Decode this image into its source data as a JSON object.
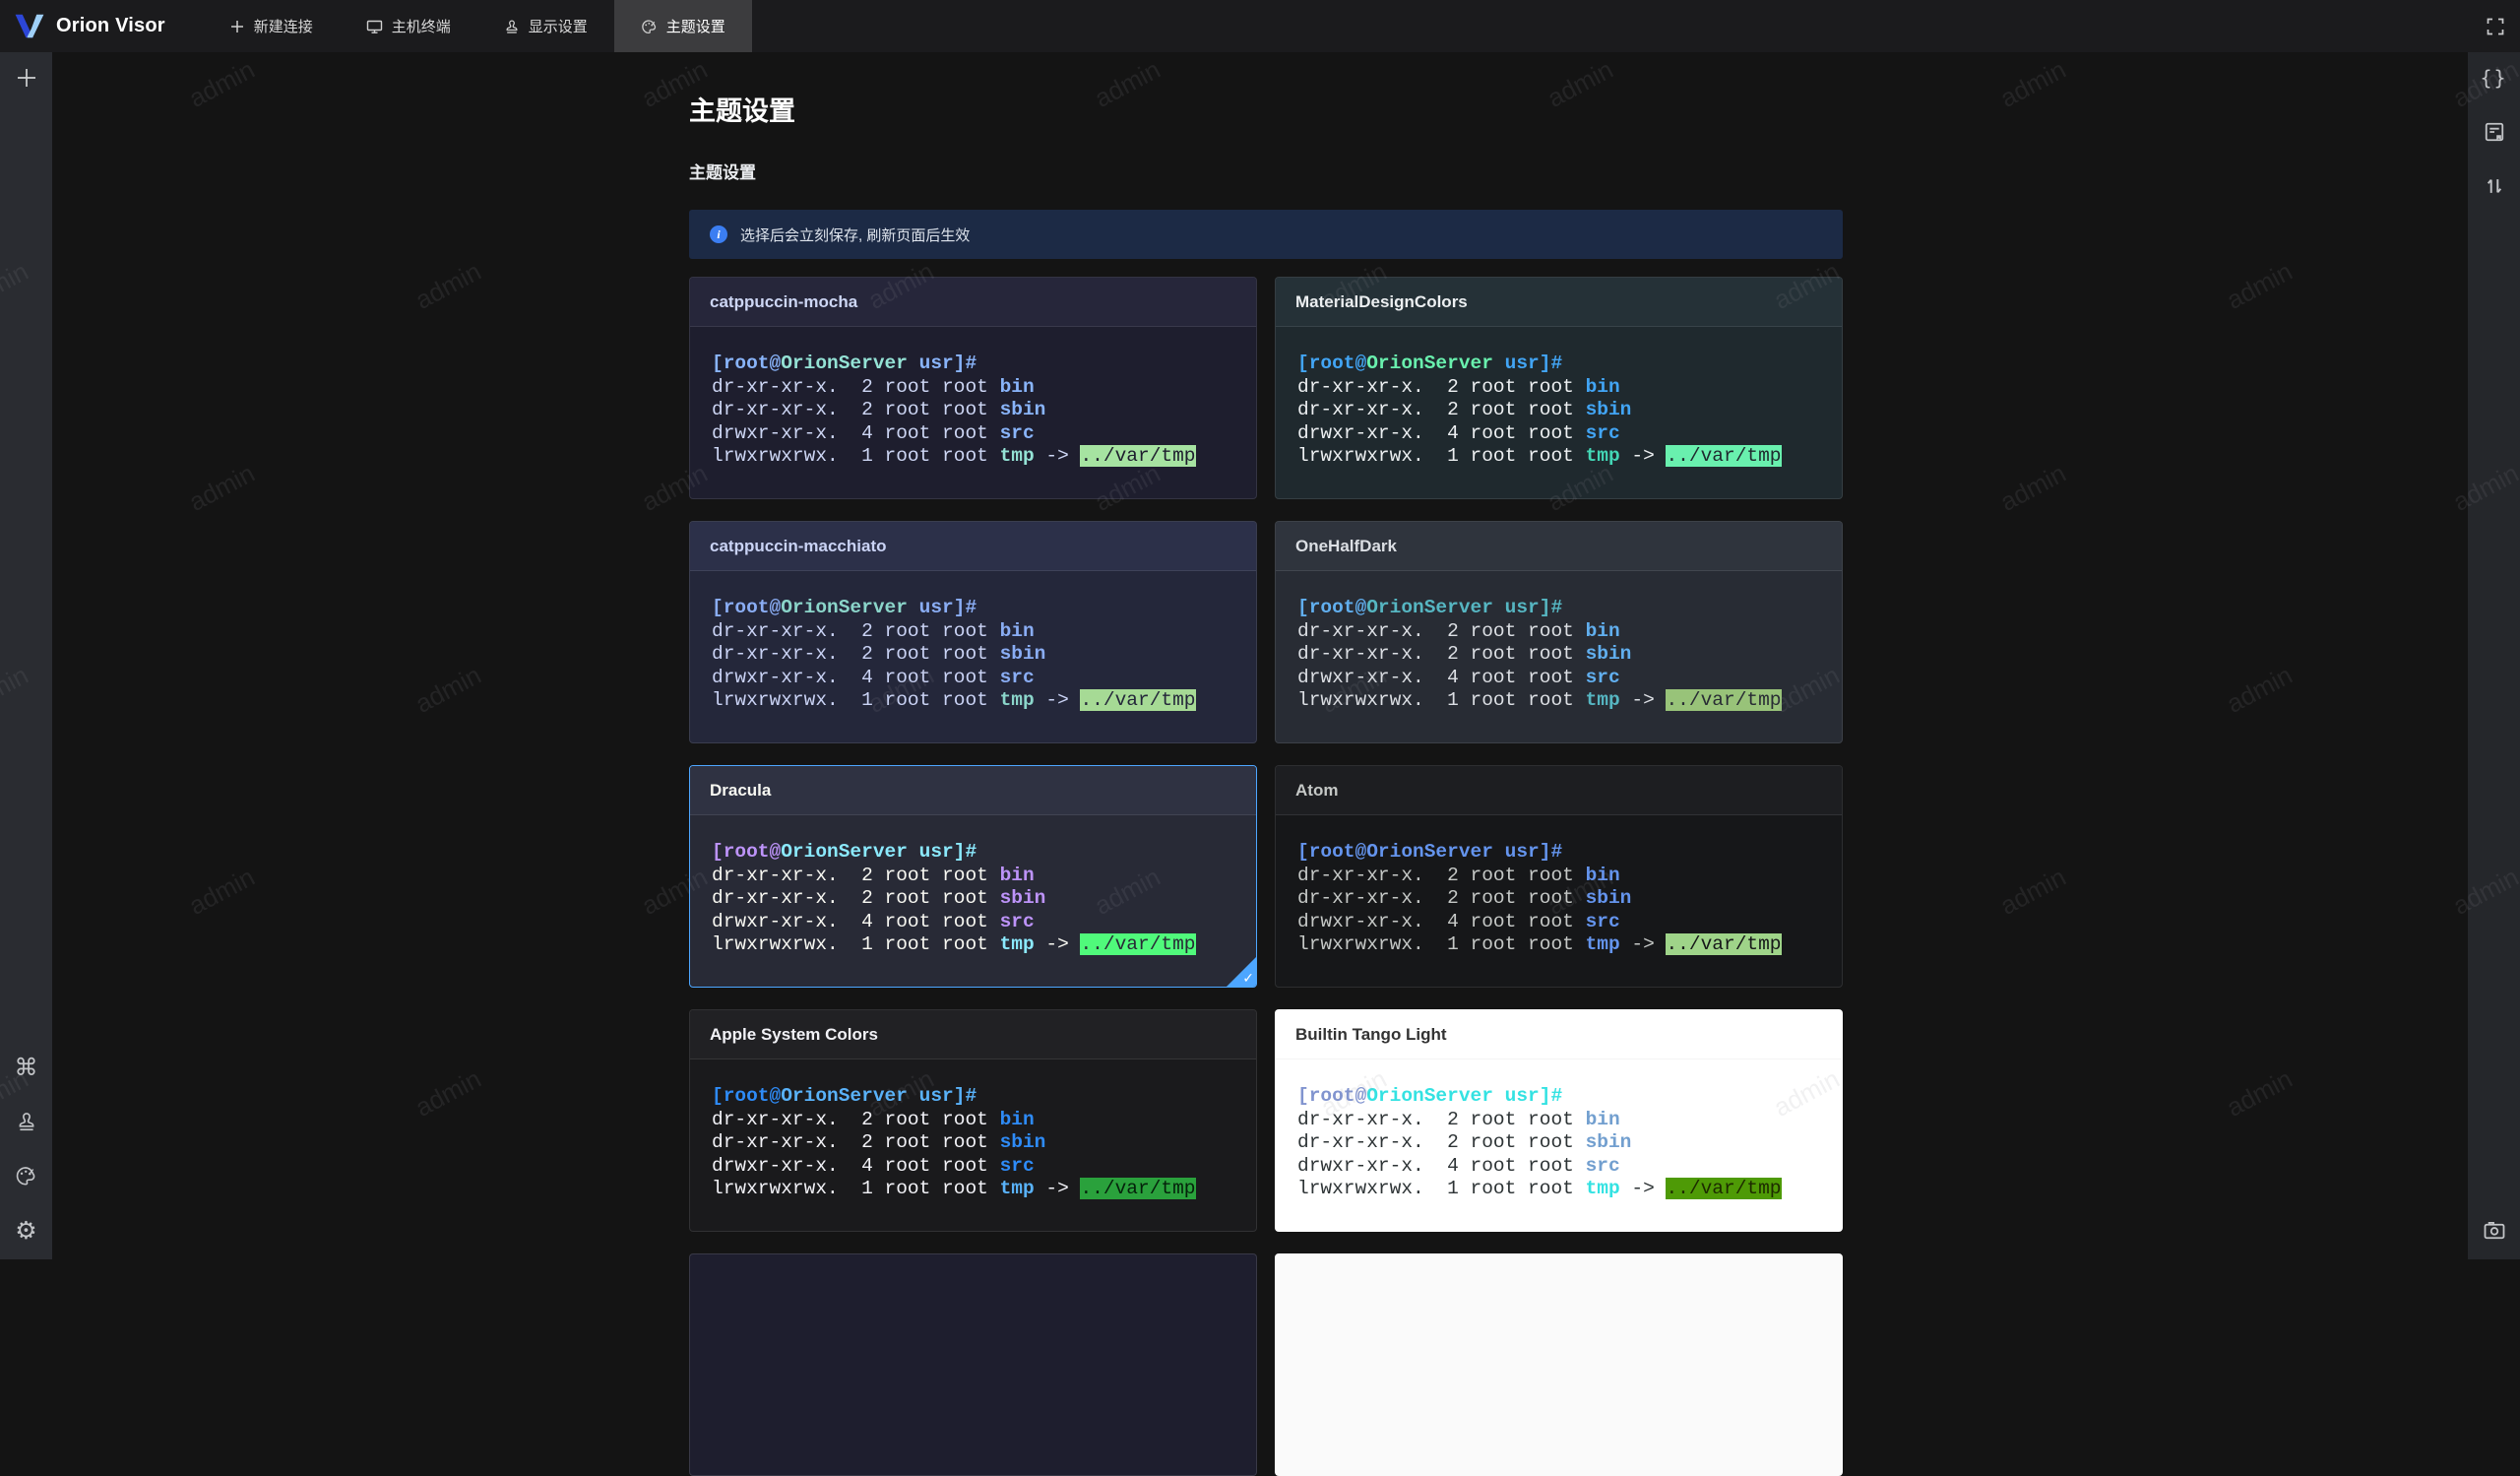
{
  "app": {
    "name": "Orion Visor"
  },
  "topbar": {
    "tabs": [
      {
        "label": "新建连接",
        "icon": "plus-icon",
        "active": false
      },
      {
        "label": "主机终端",
        "icon": "monitor-icon",
        "active": false
      },
      {
        "label": "显示设置",
        "icon": "stamp-icon",
        "active": false
      },
      {
        "label": "主题设置",
        "icon": "palette-icon",
        "active": true
      }
    ],
    "fullscreen_icon": "fullscreen-icon"
  },
  "left_rail": {
    "top_icons": [
      "plus-icon"
    ],
    "bottom_icons": [
      "command-icon",
      "stamp-icon",
      "palette-icon",
      "gear-icon"
    ]
  },
  "right_rail": {
    "top_icons": [
      "braces-icon",
      "doc-bookmark-icon",
      "sort-arrows-icon"
    ],
    "bottom_icons": [
      "camera-icon"
    ]
  },
  "page": {
    "title": "主题设置",
    "section_title": "主题设置",
    "notice": "选择后会立刻保存, 刷新页面后生效"
  },
  "watermark": {
    "text": "admin"
  },
  "selection": {
    "accent": "#4da6ff",
    "check_glyph": "✓"
  },
  "terminal_preview": {
    "prompt": {
      "bracket": "[root@",
      "host": "OrionServer",
      "rest": " usr]#"
    },
    "lines": [
      {
        "pre": "dr-xr-xr-x.  2 root root ",
        "name": "bin"
      },
      {
        "pre": "dr-xr-xr-x.  2 root root ",
        "name": "sbin"
      },
      {
        "pre": "drwxr-xr-x.  4 root root ",
        "name": "src"
      },
      {
        "pre": "lrwxrwxrwx.  1 root root ",
        "name": "tmp",
        "arrow": " -> ",
        "link": "../var/tmp"
      }
    ]
  },
  "themes": [
    {
      "name": "catppuccin-mocha",
      "selected": false,
      "colors": {
        "bg": "#1e1e2e",
        "header": "#26263a",
        "divider": "rgba(255,255,255,0.09)",
        "title": "#cdd6f4",
        "text": "#cdd6f4",
        "bracket": "#89b4fa",
        "host": "#94e2d5",
        "user": "#89b4fa",
        "dir": "#89b4fa",
        "tmp": "#94e2d5",
        "hl_bg": "#a6e3a1",
        "hl_text": "#1e1e2e"
      }
    },
    {
      "name": "MaterialDesignColors",
      "selected": false,
      "colors": {
        "bg": "#1f292e",
        "header": "#253137",
        "divider": "rgba(255,255,255,0.09)",
        "title": "#eceff1",
        "text": "#eceff1",
        "bracket": "#42a5f5",
        "host": "#69f0ae",
        "user": "#42a5f5",
        "dir": "#42a5f5",
        "tmp": "#43d6b5",
        "hl_bg": "#69f0ae",
        "hl_text": "#1f292e"
      }
    },
    {
      "name": "catppuccin-macchiato",
      "selected": false,
      "colors": {
        "bg": "#24273a",
        "header": "#2c3049",
        "divider": "rgba(255,255,255,0.09)",
        "title": "#cad3f5",
        "text": "#cad3f5",
        "bracket": "#8aadf4",
        "host": "#8bd5ca",
        "user": "#8aadf4",
        "dir": "#8aadf4",
        "tmp": "#8bd5ca",
        "hl_bg": "#a6da95",
        "hl_text": "#24273a"
      }
    },
    {
      "name": "OneHalfDark",
      "selected": false,
      "colors": {
        "bg": "#282c34",
        "header": "#2f343d",
        "divider": "rgba(255,255,255,0.09)",
        "title": "#dcdfe4",
        "text": "#dcdfe4",
        "bracket": "#61afef",
        "host": "#56b6c2",
        "user": "#56b6c2",
        "dir": "#61afef",
        "tmp": "#56b6c2",
        "hl_bg": "#98c379",
        "hl_text": "#282c34"
      }
    },
    {
      "name": "Dracula",
      "selected": true,
      "colors": {
        "bg": "#282a36",
        "header": "#2f3242",
        "divider": "rgba(255,255,255,0.09)",
        "title": "#f8f8f2",
        "text": "#f8f8f2",
        "bracket": "#bd93f9",
        "host": "#8be9fd",
        "user": "#8be9fd",
        "dir": "#bd93f9",
        "tmp": "#8be9fd",
        "hl_bg": "#50fa7b",
        "hl_text": "#282a36"
      }
    },
    {
      "name": "Atom",
      "selected": false,
      "colors": {
        "bg": "#161719",
        "header": "#1d1e21",
        "divider": "rgba(255,255,255,0.09)",
        "title": "#c5c8c6",
        "text": "#c5c8c6",
        "bracket": "#6494ed",
        "host": "#6494ed",
        "user": "#6494ed",
        "dir": "#6494ed",
        "tmp": "#6494ed",
        "hl_bg": "#9fd489",
        "hl_text": "#161719"
      }
    },
    {
      "name": "Apple System Colors",
      "selected": false,
      "colors": {
        "bg": "#1a1a1c",
        "header": "#212124",
        "divider": "rgba(255,255,255,0.09)",
        "title": "#f2f2f7",
        "text": "#f2f2f7",
        "bracket": "#2e8bf7",
        "host": "#59b2f9",
        "user": "#59b2f9",
        "dir": "#2e8bf7",
        "tmp": "#59b2f9",
        "hl_bg": "#2aa13c",
        "hl_text": "#05220b"
      }
    },
    {
      "name": "Builtin Tango Light",
      "selected": false,
      "colors": {
        "bg": "#ffffff",
        "header": "#ffffff",
        "divider": "rgba(0,0,0,0.04)",
        "title": "#333333",
        "text": "#2e3436",
        "bracket": "#8194cf",
        "host": "#34e2e2",
        "user": "#34e2e2",
        "dir": "#729fcf",
        "tmp": "#34e2e2",
        "hl_bg": "#4e9a06",
        "hl_text": "#1d2b00"
      }
    }
  ],
  "partial_cards": [
    {
      "bg": "#1e1e2e",
      "border": "rgba(255,255,255,0.12)"
    },
    {
      "bg": "#fafafa",
      "border": "#fafafa"
    }
  ]
}
